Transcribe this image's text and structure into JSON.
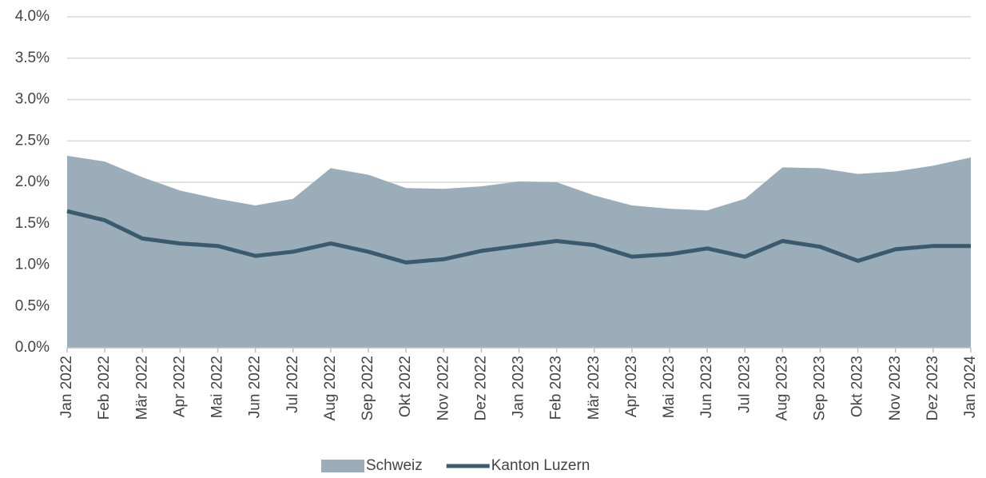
{
  "chart_data": {
    "type": "line",
    "categories": [
      "Jan 2022",
      "Feb 2022",
      "Mär 2022",
      "Apr 2022",
      "Mai 2022",
      "Jun 2022",
      "Jul 2022",
      "Aug 2022",
      "Sep 2022",
      "Okt 2022",
      "Nov 2022",
      "Dez 2022",
      "Jan 2023",
      "Feb 2023",
      "Mär 2023",
      "Apr 2023",
      "Mai 2023",
      "Jun 2023",
      "Jul 2023",
      "Aug 2023",
      "Sep 2023",
      "Okt 2023",
      "Nov 2023",
      "Dez 2023",
      "Jan 2024"
    ],
    "series": [
      {
        "name": "Schweiz",
        "type": "area",
        "color": "#9aadb9",
        "values": [
          2.32,
          2.25,
          2.06,
          1.9,
          1.8,
          1.72,
          1.8,
          2.17,
          2.09,
          1.93,
          1.92,
          1.95,
          2.01,
          2.0,
          1.84,
          1.72,
          1.68,
          1.66,
          1.8,
          2.18,
          2.17,
          2.1,
          2.13,
          2.2,
          2.3
        ]
      },
      {
        "name": "Kanton Luzern",
        "type": "line",
        "color": "#3b5a6e",
        "values": [
          1.65,
          1.54,
          1.32,
          1.26,
          1.23,
          1.11,
          1.16,
          1.26,
          1.16,
          1.03,
          1.07,
          1.17,
          1.23,
          1.29,
          1.24,
          1.1,
          1.13,
          1.2,
          1.1,
          1.29,
          1.22,
          1.05,
          1.19,
          1.23,
          1.23
        ]
      }
    ],
    "ylim": [
      0,
      4
    ],
    "yticks": [
      {
        "value": 0,
        "label": "0.0%"
      },
      {
        "value": 0.5,
        "label": "0.5%"
      },
      {
        "value": 1,
        "label": "1.0%"
      },
      {
        "value": 1.5,
        "label": "1.5%"
      },
      {
        "value": 2,
        "label": "2.0%"
      },
      {
        "value": 2.5,
        "label": "2.5%"
      },
      {
        "value": 3,
        "label": "3.0%"
      },
      {
        "value": 3.5,
        "label": "3.5%"
      },
      {
        "value": 4,
        "label": "4.0%"
      }
    ],
    "grid": true,
    "legend": "bottom"
  }
}
